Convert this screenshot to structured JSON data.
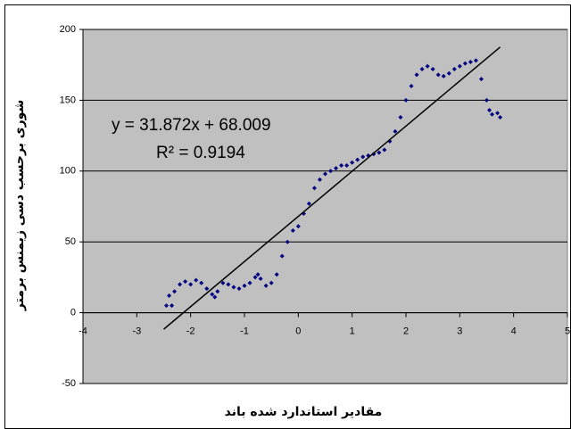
{
  "chart_data": {
    "type": "scatter",
    "x_label": "مقادیر استاندارد شده باند",
    "y_label": "شوری برحسب دسی زیمنس برمتر",
    "annotations": [
      "y = 31.872x + 68.009",
      "R² = 0.9194"
    ],
    "x": [
      -2.45,
      -2.4,
      -2.35,
      -2.3,
      -2.2,
      -2.1,
      -2.0,
      -1.9,
      -1.8,
      -1.7,
      -1.6,
      -1.55,
      -1.5,
      -1.4,
      -1.3,
      -1.2,
      -1.1,
      -1.0,
      -0.9,
      -0.8,
      -0.75,
      -0.7,
      -0.6,
      -0.5,
      -0.4,
      -0.3,
      -0.2,
      -0.1,
      0.0,
      0.1,
      0.2,
      0.3,
      0.4,
      0.5,
      0.6,
      0.7,
      0.8,
      0.9,
      1.0,
      1.1,
      1.2,
      1.3,
      1.4,
      1.5,
      1.6,
      1.7,
      1.8,
      1.9,
      2.0,
      2.1,
      2.2,
      2.3,
      2.4,
      2.5,
      2.6,
      2.7,
      2.8,
      2.9,
      3.0,
      3.1,
      3.2,
      3.3,
      3.4,
      3.5,
      3.55,
      3.6,
      3.7,
      3.75
    ],
    "series": [
      {
        "name": "data",
        "color": "#000080",
        "values": [
          5,
          12,
          5,
          15,
          20,
          22,
          20,
          23,
          21,
          17,
          13,
          11,
          15,
          21,
          20,
          18,
          17,
          19,
          21,
          25,
          27,
          24,
          19,
          21,
          27,
          40,
          50,
          58,
          61,
          70,
          77,
          88,
          94,
          98,
          100,
          102,
          104,
          104,
          106,
          108,
          110,
          111,
          112,
          113,
          115,
          121,
          128,
          138,
          150,
          160,
          168,
          172,
          174,
          172,
          168,
          167,
          169,
          172,
          174,
          176,
          177,
          178,
          165,
          150,
          143,
          140,
          141,
          138
        ]
      }
    ],
    "trendline": {
      "slope": 31.872,
      "intercept": 68.009,
      "xrange": [
        -2.5,
        3.75
      ],
      "color": "#000000"
    },
    "xlim": [
      -4,
      5
    ],
    "xticks": [
      -4,
      -3,
      -2,
      -1,
      0,
      1,
      2,
      3,
      4,
      5
    ],
    "ylim": [
      -50,
      200
    ],
    "yticks": [
      -50,
      0,
      50,
      100,
      150,
      200
    ],
    "grid": true,
    "plot_background": "#c0c0c0"
  }
}
